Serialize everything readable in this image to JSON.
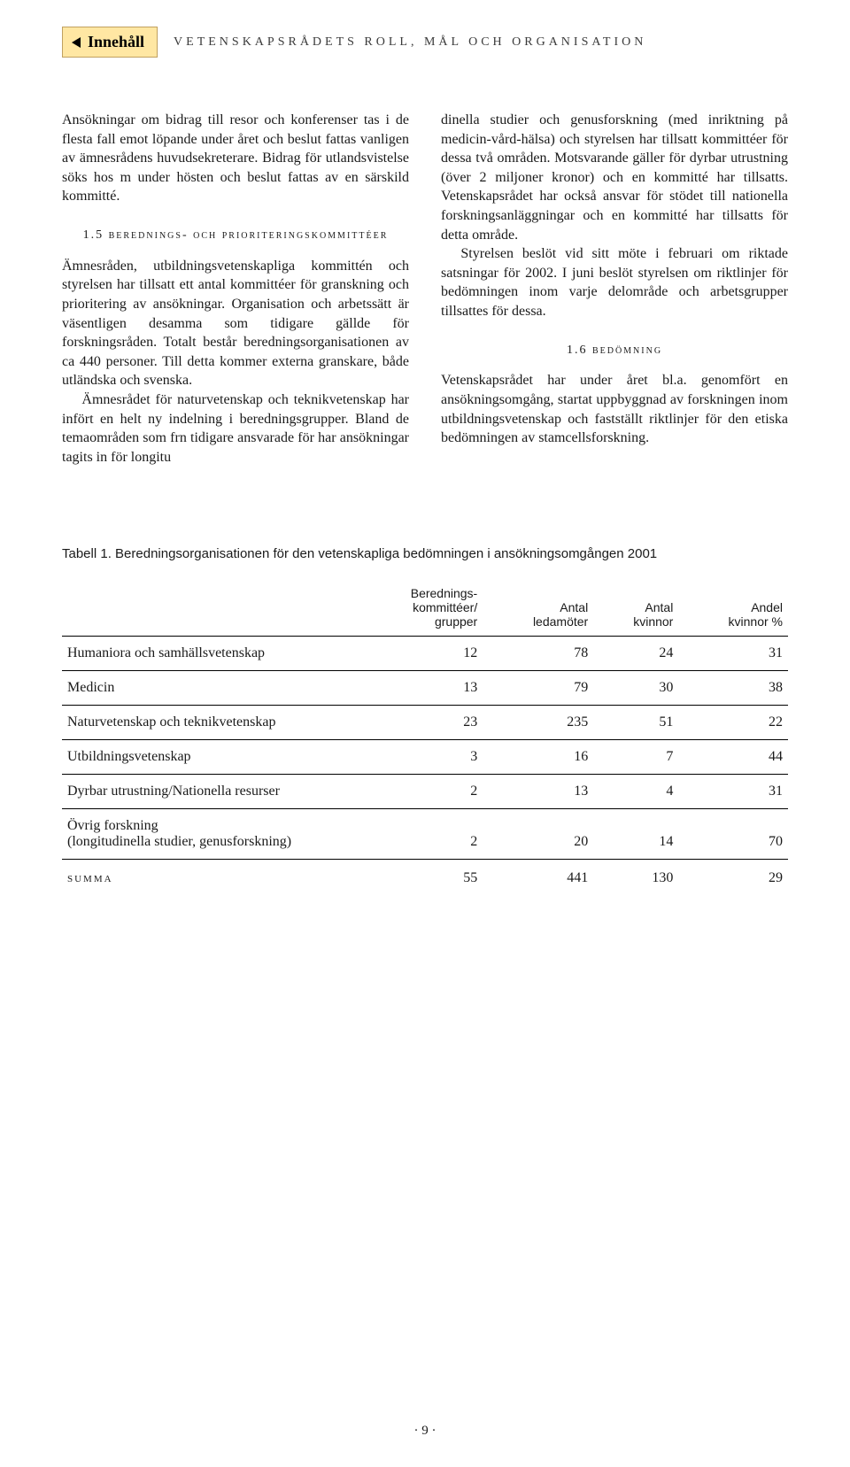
{
  "nav": {
    "label": "Innehåll"
  },
  "runningHead": "vetenskapsrådets roll, mål och organisation",
  "left": {
    "p1": "Ansökningar om bidrag till resor och konferenser tas i de flesta fall emot löpande under året och beslut fattas vanligen av ämnesrådens huvudsekreterare. Bidrag för utlandsvistelse söks hos m under hösten och beslut fattas av en särskild kommitté.",
    "h1": "1.5 berednings- och prioriteringskommittéer",
    "p2": "Ämnesråden, utbildningsvetenskapliga kommittén och styrelsen har tillsatt ett antal kommittéer för granskning och prioritering av ansökningar. Organisation och arbetssätt är väsentligen desamma som tidigare gällde för forskningsråden. Totalt består beredningsorganisationen av ca 440 personer. Till detta kommer externa granskare, både utländska och svenska.",
    "p3": "Ämnesrådet för naturvetenskap och teknikvetenskap har infört en helt ny indelning i beredningsgrupper. Bland de temaområden som frn tidigare ansvarade för har ansökningar tagits in för longitu"
  },
  "right": {
    "p1": "dinella studier och genusforskning (med inriktning på medicin-vård-hälsa) och styrelsen har tillsatt kommittéer för dessa två områden. Motsvarande gäller för dyrbar utrustning (över 2 miljoner kronor) och en kommitté har tillsatts. Vetenskapsrådet har också ansvar för stödet till nationella forskningsanläggningar och en kommitté har tillsatts för detta område.",
    "p2": "Styrelsen beslöt vid sitt möte i februari om riktade satsningar för 2002. I juni beslöt styrelsen om riktlinjer för bedömningen inom varje delområde och arbetsgrupper tillsattes för dessa.",
    "h2": "1.6 bedömning",
    "p3": "Vetenskapsrådet har under året bl.a. genomfört en ansökningsomgång, startat uppbyggnad av forskningen inom utbildningsvetenskap och fastställt riktlinjer för den etiska bedömningen av stamcellsforskning."
  },
  "table": {
    "caption": "Tabell 1. Beredningsorganisationen för den vetenskapliga bedömningen i ansökningsomgången 2001",
    "headers": {
      "c1": "",
      "c2a": "Berednings-",
      "c2b": "kommittéer/",
      "c2c": "grupper",
      "c3a": "Antal",
      "c3b": "ledamöter",
      "c4a": "Antal",
      "c4b": "kvinnor",
      "c5a": "Andel",
      "c5b": "kvinnor %"
    },
    "rows": [
      {
        "label": "Humaniora och samhällsvetenskap",
        "v1": "12",
        "v2": "78",
        "v3": "24",
        "v4": "31"
      },
      {
        "label": "Medicin",
        "v1": "13",
        "v2": "79",
        "v3": "30",
        "v4": "38"
      },
      {
        "label": "Naturvetenskap och teknikvetenskap",
        "v1": "23",
        "v2": "235",
        "v3": "51",
        "v4": "22"
      },
      {
        "label": "Utbildningsvetenskap",
        "v1": "3",
        "v2": "16",
        "v3": "7",
        "v4": "44"
      },
      {
        "label": "Dyrbar utrustning/Nationella resurser",
        "v1": "2",
        "v2": "13",
        "v3": "4",
        "v4": "31"
      }
    ],
    "row6a": "Övrig forskning",
    "row6b": "(longitudinella studier, genusforskning)",
    "row6": {
      "v1": "2",
      "v2": "20",
      "v3": "14",
      "v4": "70"
    },
    "sum": {
      "label": "summa",
      "v1": "55",
      "v2": "441",
      "v3": "130",
      "v4": "29"
    }
  },
  "pageNumber": "· 9 ·"
}
